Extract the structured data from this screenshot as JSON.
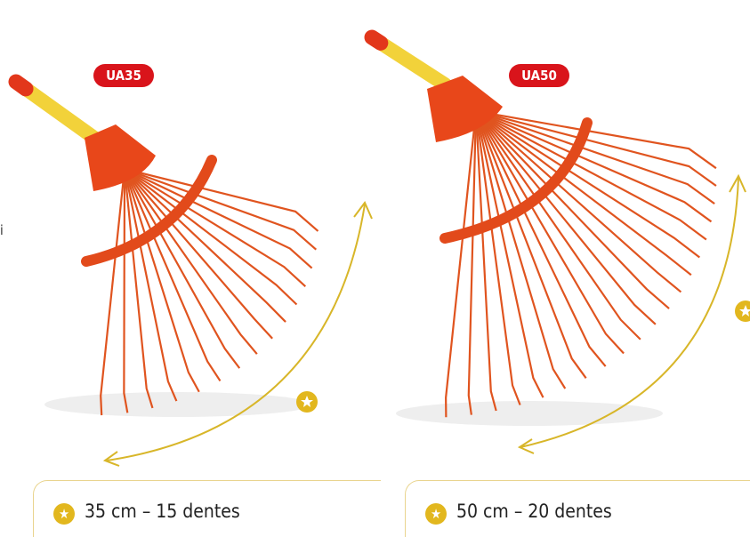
{
  "edge_text": "i",
  "products": [
    {
      "code": "UA35",
      "spec": "35 cm – 15 dentes"
    },
    {
      "code": "UA50",
      "spec": "50 cm – 20 dentes"
    }
  ]
}
